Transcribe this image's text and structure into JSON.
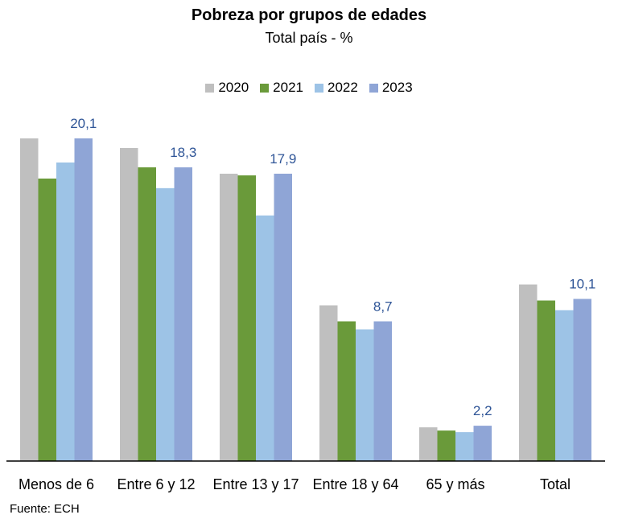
{
  "title": "Pobreza por grupos de edades",
  "subtitle": "Total país - %",
  "source": "Fuente: ECH",
  "colors": {
    "2020": "#BFBFBF",
    "2021": "#6A9A3A",
    "2022": "#9DC3E6",
    "2023": "#8FA5D6",
    "label": "#2F5597",
    "axis": "#000000"
  },
  "chart_data": {
    "type": "bar",
    "title": "Pobreza por grupos de edades",
    "subtitle": "Total país - %",
    "categories": [
      "Menos de 6",
      "Entre 6 y 12",
      "Entre 13 y 17",
      "Entre 18 y 64",
      "65 y más",
      "Total"
    ],
    "series": [
      {
        "name": "2020",
        "values": [
          20.1,
          19.5,
          17.9,
          9.7,
          2.1,
          11.0
        ]
      },
      {
        "name": "2021",
        "values": [
          17.6,
          18.3,
          17.8,
          8.7,
          1.9,
          10.0
        ]
      },
      {
        "name": "2022",
        "values": [
          18.6,
          17.0,
          15.3,
          8.2,
          1.8,
          9.4
        ]
      },
      {
        "name": "2023",
        "values": [
          20.1,
          18.3,
          17.9,
          8.7,
          2.2,
          10.1
        ]
      }
    ],
    "data_labels": {
      "series": "2023",
      "values": [
        "20,1",
        "18,3",
        "17,9",
        "8,7",
        "2,2",
        "10,1"
      ]
    },
    "ylim": [
      0,
      20.1
    ],
    "grid": false,
    "legend": "top-center"
  }
}
